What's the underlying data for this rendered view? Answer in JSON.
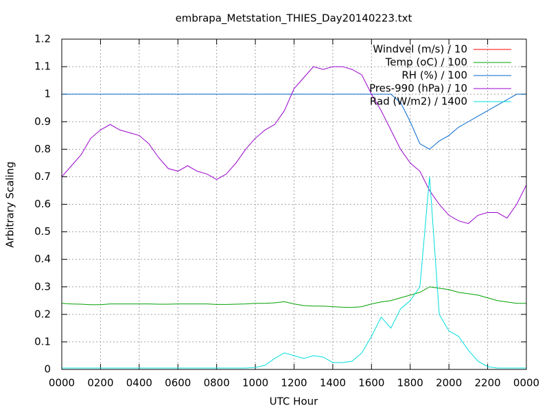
{
  "chart_data": {
    "type": "line",
    "title": "embrapa_Metstation_THIES_Day20140223.txt",
    "x_label": "UTC Hour",
    "y_label": "Arbitrary Scaling",
    "x": [
      0,
      0.5,
      1,
      1.5,
      2,
      2.5,
      3,
      3.5,
      4,
      4.5,
      5,
      5.5,
      6,
      6.5,
      7,
      7.5,
      8,
      8.5,
      9,
      9.5,
      10,
      10.5,
      11,
      11.5,
      12,
      12.5,
      13,
      13.5,
      14,
      14.5,
      15,
      15.5,
      16,
      16.5,
      17,
      17.5,
      18,
      18.5,
      19,
      19.5,
      20,
      20.5,
      21,
      21.5,
      22,
      22.5,
      23,
      23.5,
      24
    ],
    "series": [
      {
        "name": "Windvel (m/s) / 10",
        "color": "#ff0000",
        "values": [
          null,
          null,
          null,
          null,
          null,
          null,
          null,
          null,
          null,
          null,
          null,
          null,
          null,
          null,
          null,
          null,
          null,
          null,
          null,
          null,
          null,
          null,
          null,
          null,
          null,
          null,
          null,
          null,
          null,
          null,
          null,
          null,
          null,
          null,
          null,
          null,
          null,
          null,
          null,
          null,
          null,
          null,
          null,
          null,
          null,
          null,
          null,
          null,
          null
        ]
      },
      {
        "name": "Temp (oC) / 100",
        "color": "#00a000",
        "values": [
          0.24,
          0.238,
          0.237,
          0.235,
          0.235,
          0.238,
          0.238,
          0.238,
          0.238,
          0.238,
          0.237,
          0.237,
          0.238,
          0.238,
          0.238,
          0.238,
          0.236,
          0.236,
          0.237,
          0.238,
          0.24,
          0.24,
          0.242,
          0.246,
          0.238,
          0.232,
          0.23,
          0.23,
          0.228,
          0.226,
          0.225,
          0.228,
          0.238,
          0.245,
          0.25,
          0.26,
          0.27,
          0.28,
          0.3,
          0.295,
          0.29,
          0.28,
          0.275,
          0.27,
          0.26,
          0.25,
          0.245,
          0.24,
          0.24
        ]
      },
      {
        "name": "RH (%) / 100",
        "color": "#0066cc",
        "values": [
          1,
          1,
          1,
          1,
          1,
          1,
          1,
          1,
          1,
          1,
          1,
          1,
          1,
          1,
          1,
          1,
          1,
          1,
          1,
          1,
          1,
          1,
          1,
          1,
          1,
          1,
          1,
          1,
          1,
          1,
          1,
          1,
          1,
          1,
          1,
          0.97,
          0.9,
          0.82,
          0.8,
          0.83,
          0.85,
          0.88,
          0.9,
          0.92,
          0.94,
          0.96,
          0.98,
          1,
          1
        ]
      },
      {
        "name": "Pres-990 (hPa) / 10",
        "color": "#9900cc",
        "values": [
          0.7,
          0.74,
          0.78,
          0.84,
          0.87,
          0.89,
          0.87,
          0.86,
          0.85,
          0.82,
          0.77,
          0.73,
          0.72,
          0.74,
          0.72,
          0.71,
          0.69,
          0.71,
          0.75,
          0.8,
          0.84,
          0.87,
          0.89,
          0.94,
          1.02,
          1.06,
          1.1,
          1.09,
          1.1,
          1.1,
          1.09,
          1.07,
          1.0,
          0.94,
          0.87,
          0.8,
          0.75,
          0.72,
          0.65,
          0.6,
          0.56,
          0.54,
          0.53,
          0.56,
          0.57,
          0.57,
          0.55,
          0.6,
          0.67
        ]
      },
      {
        "name": "Rad (W/m2) / 1400",
        "color": "#00dddd",
        "values": [
          0.005,
          0.005,
          0.005,
          0.005,
          0.005,
          0.005,
          0.005,
          0.005,
          0.005,
          0.005,
          0.005,
          0.005,
          0.005,
          0.005,
          0.005,
          0.005,
          0.005,
          0.005,
          0.005,
          0.005,
          0.007,
          0.015,
          0.04,
          0.06,
          0.05,
          0.04,
          0.05,
          0.045,
          0.025,
          0.025,
          0.03,
          0.06,
          0.12,
          0.19,
          0.15,
          0.22,
          0.25,
          0.3,
          0.7,
          0.2,
          0.14,
          0.12,
          0.07,
          0.03,
          0.01,
          0.005,
          0.005,
          0.005,
          0.005
        ]
      }
    ],
    "xlim": [
      0,
      24
    ],
    "xticks": [
      {
        "value": 0,
        "label": "0000"
      },
      {
        "value": 2,
        "label": "0200"
      },
      {
        "value": 4,
        "label": "0400"
      },
      {
        "value": 6,
        "label": "0600"
      },
      {
        "value": 8,
        "label": "0800"
      },
      {
        "value": 10,
        "label": "1000"
      },
      {
        "value": 12,
        "label": "1200"
      },
      {
        "value": 14,
        "label": "1400"
      },
      {
        "value": 16,
        "label": "1600"
      },
      {
        "value": 18,
        "label": "1800"
      },
      {
        "value": 20,
        "label": "2000"
      },
      {
        "value": 22,
        "label": "2200"
      },
      {
        "value": 24,
        "label": "0000"
      }
    ],
    "ylim": [
      0,
      1.2
    ],
    "yticks": [
      0,
      0.1,
      0.2,
      0.3,
      0.4,
      0.5,
      0.6,
      0.7,
      0.8,
      0.9,
      1,
      1.1,
      1.2
    ],
    "grid": true,
    "legend": "top-right"
  }
}
